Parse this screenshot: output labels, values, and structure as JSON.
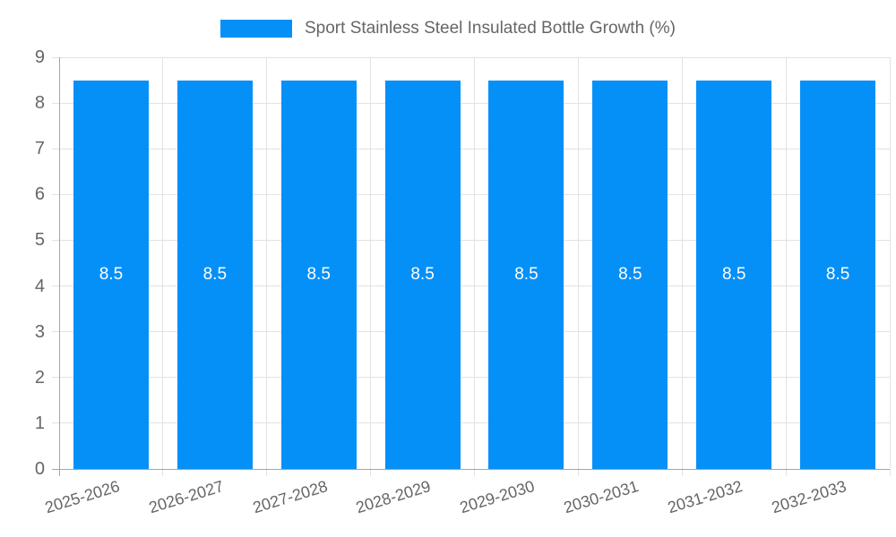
{
  "legend": {
    "position": "top"
  },
  "chart_data": {
    "type": "bar",
    "title": "Sport Stainless Steel Insulated Bottle Growth (%)",
    "categories": [
      "2025-2026",
      "2026-2027",
      "2027-2028",
      "2028-2029",
      "2029-2030",
      "2030-2031",
      "2031-2032",
      "2032-2033"
    ],
    "values": [
      8.5,
      8.5,
      8.5,
      8.5,
      8.5,
      8.5,
      8.5,
      8.5
    ],
    "value_labels": [
      "8.5",
      "8.5",
      "8.5",
      "8.5",
      "8.5",
      "8.5",
      "8.5",
      "8.5"
    ],
    "xlabel": "",
    "ylabel": "",
    "ylim": [
      0,
      9
    ],
    "ytick_step": 1,
    "yticks": [
      "0",
      "1",
      "2",
      "3",
      "4",
      "5",
      "6",
      "7",
      "8",
      "9"
    ],
    "grid": true,
    "legend_position": "top",
    "colors": {
      "bar": "#0590f8",
      "bar_value_text": "#ffffff",
      "tick_text": "#666666",
      "legend_text": "#666666",
      "grid": "#e2e2e2",
      "axis": "#a5a5a5",
      "background": "#ffffff"
    }
  }
}
